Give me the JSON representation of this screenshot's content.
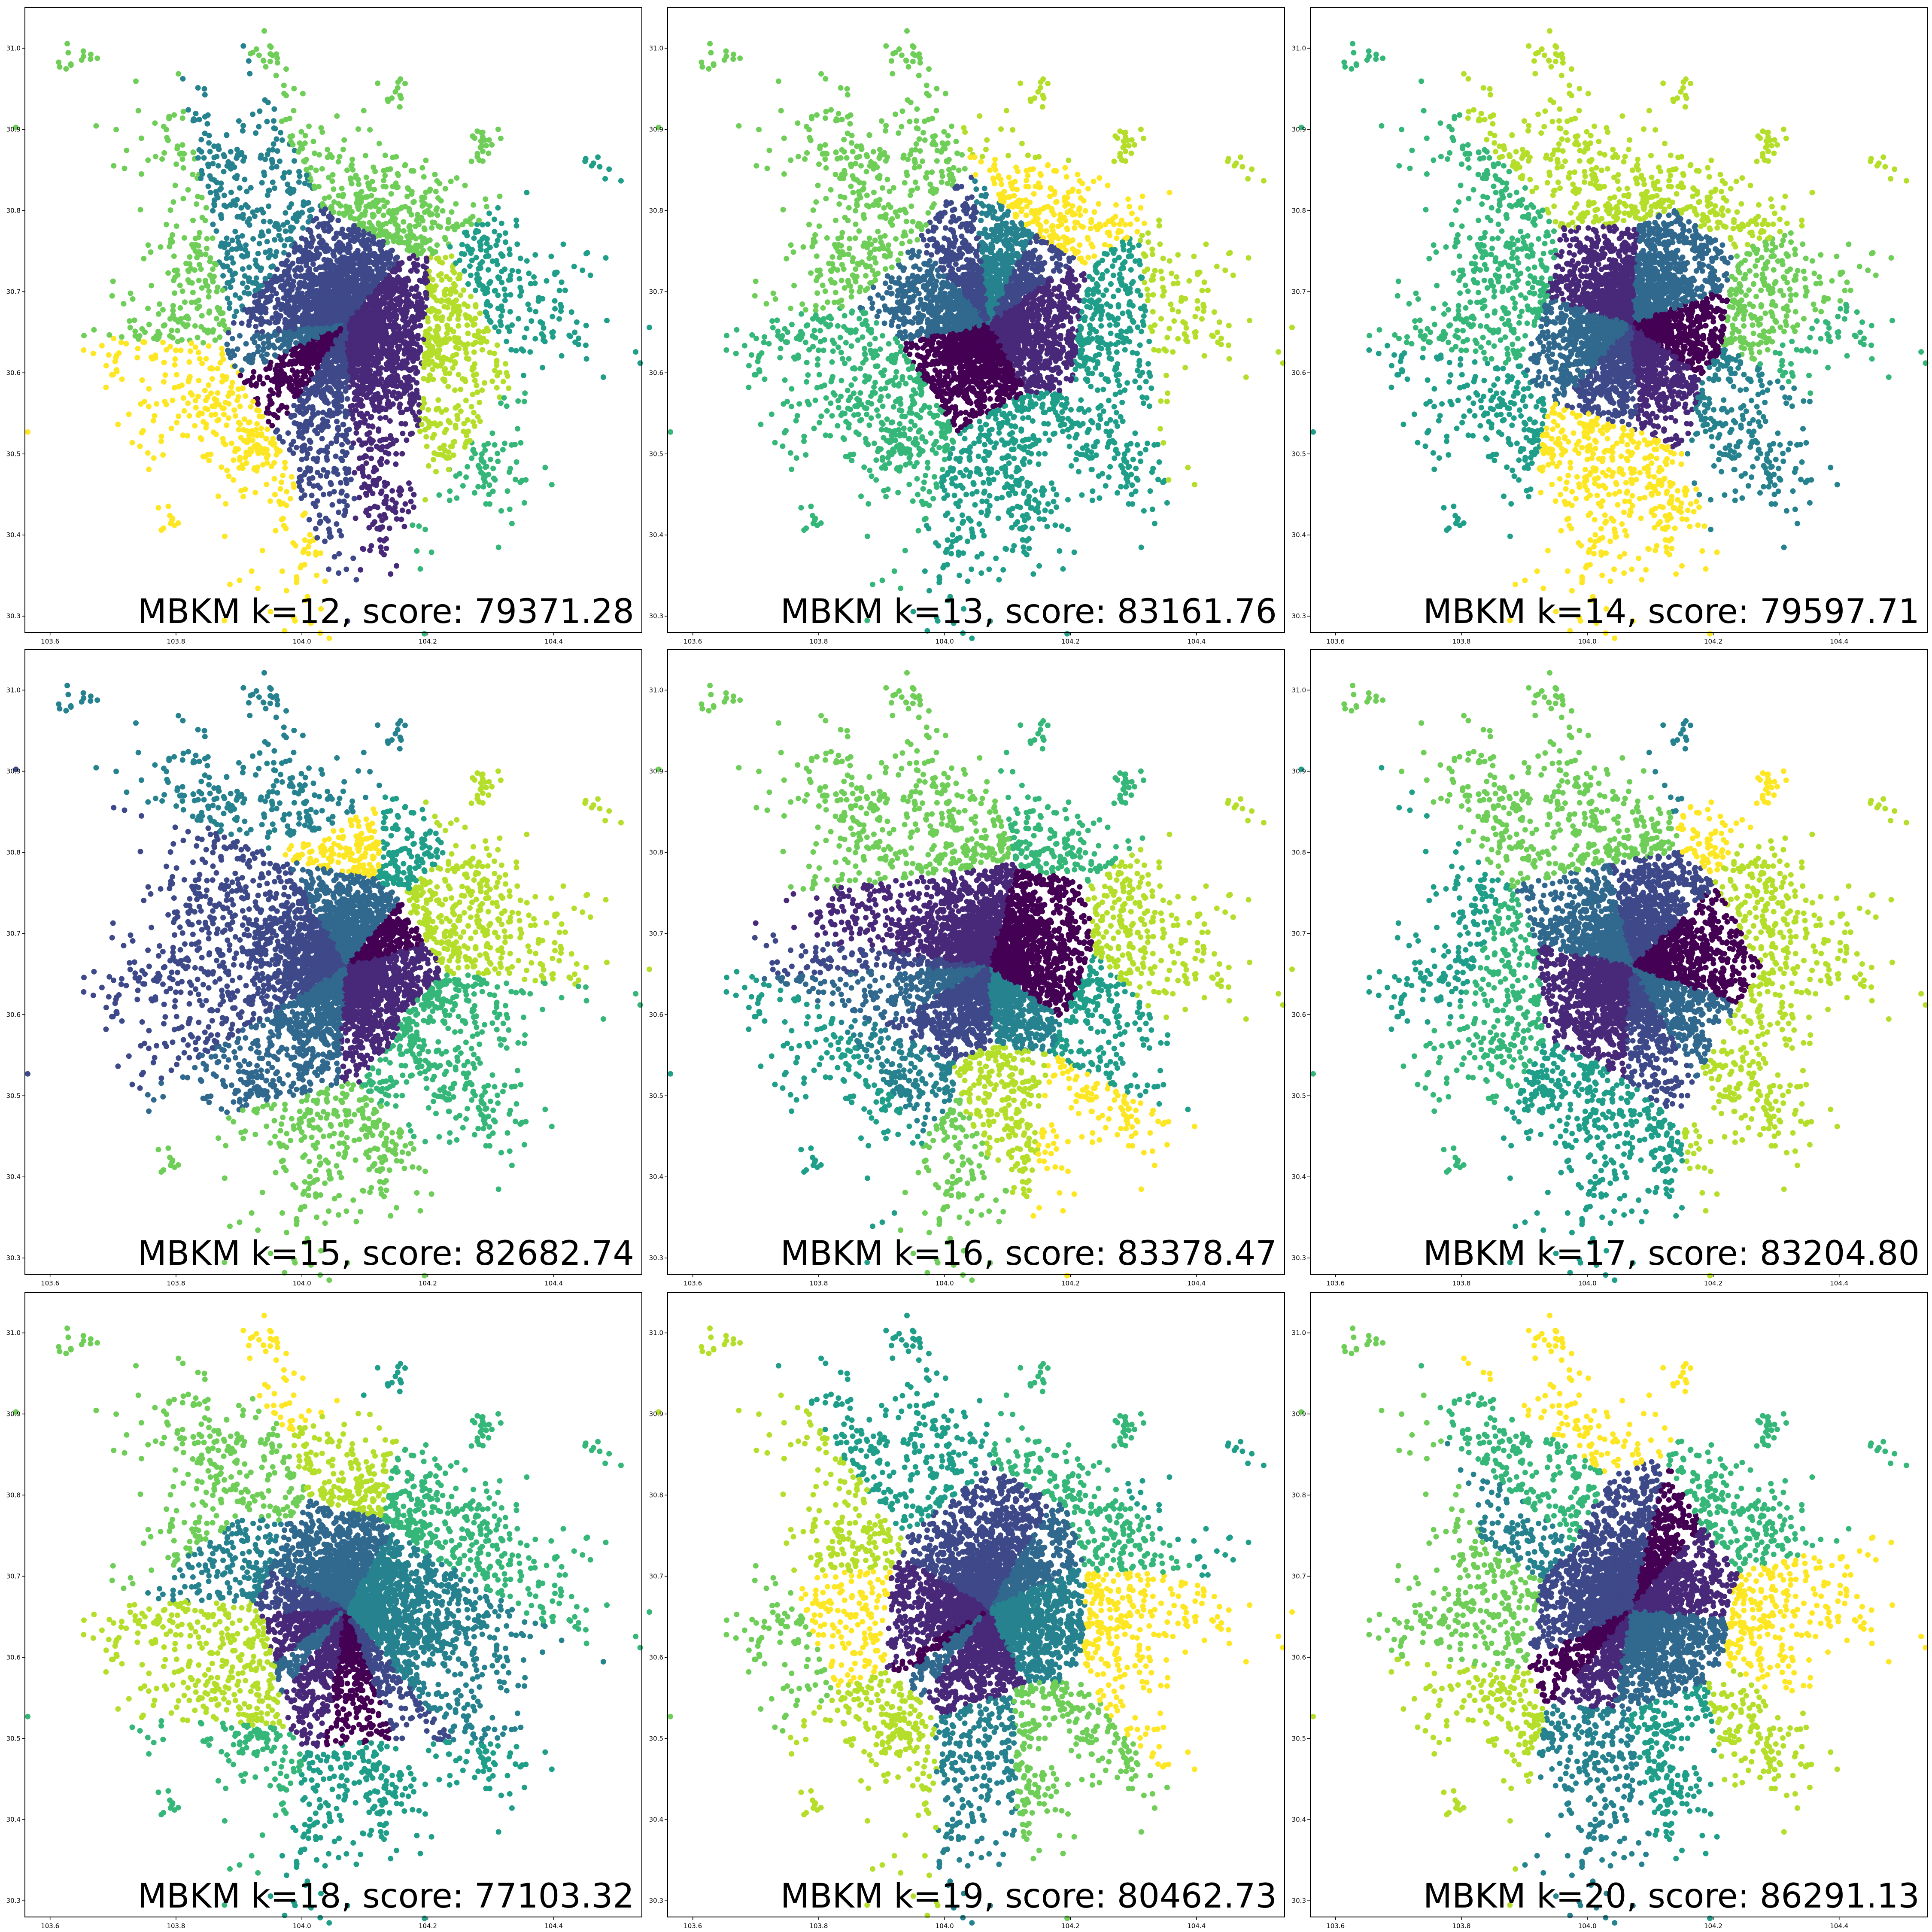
{
  "chart_data": [
    {
      "type": "scatter",
      "algorithm": "MBKM",
      "k": 12,
      "score": "79371.28",
      "annotation": "MBKM k=12, score: 79371.28",
      "x_ticks": [
        "103.6",
        "103.8",
        "104.0",
        "104.2",
        "104.4"
      ],
      "y_ticks": [
        "30.3",
        "30.4",
        "30.5",
        "30.6",
        "30.7",
        "30.8",
        "30.9",
        "31.0"
      ],
      "xlim": [
        103.56,
        104.54
      ],
      "ylim": [
        30.28,
        31.05
      ],
      "grid": false
    },
    {
      "type": "scatter",
      "algorithm": "MBKM",
      "k": 13,
      "score": "83161.76",
      "annotation": "MBKM k=13, score: 83161.76",
      "x_ticks": [
        "103.6",
        "103.8",
        "104.0",
        "104.2",
        "104.4"
      ],
      "y_ticks": [
        "30.3",
        "30.4",
        "30.5",
        "30.6",
        "30.7",
        "30.8",
        "30.9",
        "31.0"
      ],
      "xlim": [
        103.56,
        104.54
      ],
      "ylim": [
        30.28,
        31.05
      ],
      "grid": false
    },
    {
      "type": "scatter",
      "algorithm": "MBKM",
      "k": 14,
      "score": "79597.71",
      "annotation": "MBKM k=14, score: 79597.71",
      "x_ticks": [
        "103.6",
        "103.8",
        "104.0",
        "104.2",
        "104.4"
      ],
      "y_ticks": [
        "30.3",
        "30.4",
        "30.5",
        "30.6",
        "30.7",
        "30.8",
        "30.9",
        "31.0"
      ],
      "xlim": [
        103.56,
        104.54
      ],
      "ylim": [
        30.28,
        31.05
      ],
      "grid": false
    },
    {
      "type": "scatter",
      "algorithm": "MBKM",
      "k": 15,
      "score": "82682.74",
      "annotation": "MBKM k=15, score: 82682.74",
      "x_ticks": [
        "103.6",
        "103.8",
        "104.0",
        "104.2",
        "104.4"
      ],
      "y_ticks": [
        "30.3",
        "30.4",
        "30.5",
        "30.6",
        "30.7",
        "30.8",
        "30.9",
        "31.0"
      ],
      "xlim": [
        103.56,
        104.54
      ],
      "ylim": [
        30.28,
        31.05
      ],
      "grid": false
    },
    {
      "type": "scatter",
      "algorithm": "MBKM",
      "k": 16,
      "score": "83378.47",
      "annotation": "MBKM k=16, score: 83378.47",
      "x_ticks": [
        "103.6",
        "103.8",
        "104.0",
        "104.2",
        "104.4"
      ],
      "y_ticks": [
        "30.3",
        "30.4",
        "30.5",
        "30.6",
        "30.7",
        "30.8",
        "30.9",
        "31.0"
      ],
      "xlim": [
        103.56,
        104.54
      ],
      "ylim": [
        30.28,
        31.05
      ],
      "grid": false
    },
    {
      "type": "scatter",
      "algorithm": "MBKM",
      "k": 17,
      "score": "83204.80",
      "annotation": "MBKM k=17, score: 83204.80",
      "x_ticks": [
        "103.6",
        "103.8",
        "104.0",
        "104.2",
        "104.4"
      ],
      "y_ticks": [
        "30.3",
        "30.4",
        "30.5",
        "30.6",
        "30.7",
        "30.8",
        "30.9",
        "31.0"
      ],
      "xlim": [
        103.56,
        104.54
      ],
      "ylim": [
        30.28,
        31.05
      ],
      "grid": false
    },
    {
      "type": "scatter",
      "algorithm": "MBKM",
      "k": 18,
      "score": "77103.32",
      "annotation": "MBKM k=18, score: 77103.32",
      "x_ticks": [
        "103.6",
        "103.8",
        "104.0",
        "104.2",
        "104.4"
      ],
      "y_ticks": [
        "30.3",
        "30.4",
        "30.5",
        "30.6",
        "30.7",
        "30.8",
        "30.9",
        "31.0"
      ],
      "xlim": [
        103.56,
        104.54
      ],
      "ylim": [
        30.28,
        31.05
      ],
      "grid": false
    },
    {
      "type": "scatter",
      "algorithm": "MBKM",
      "k": 19,
      "score": "80462.73",
      "annotation": "MBKM k=19, score: 80462.73",
      "x_ticks": [
        "103.6",
        "103.8",
        "104.0",
        "104.2",
        "104.4"
      ],
      "y_ticks": [
        "30.3",
        "30.4",
        "30.5",
        "30.6",
        "30.7",
        "30.8",
        "30.9",
        "31.0"
      ],
      "xlim": [
        103.56,
        104.54
      ],
      "ylim": [
        30.28,
        31.05
      ],
      "grid": false
    },
    {
      "type": "scatter",
      "algorithm": "MBKM",
      "k": 20,
      "score": "86291.13",
      "annotation": "MBKM k=20, score: 86291.13",
      "x_ticks": [
        "103.6",
        "103.8",
        "104.0",
        "104.2",
        "104.4"
      ],
      "y_ticks": [
        "30.3",
        "30.4",
        "30.5",
        "30.6",
        "30.7",
        "30.8",
        "30.9",
        "31.0"
      ],
      "xlim": [
        103.56,
        104.54
      ],
      "ylim": [
        30.28,
        31.05
      ],
      "grid": false
    }
  ],
  "colormap": [
    "#440154",
    "#482878",
    "#3e4989",
    "#31688e",
    "#26828e",
    "#1f9e89",
    "#35b779",
    "#6ece58",
    "#b5de2b",
    "#fde725"
  ]
}
